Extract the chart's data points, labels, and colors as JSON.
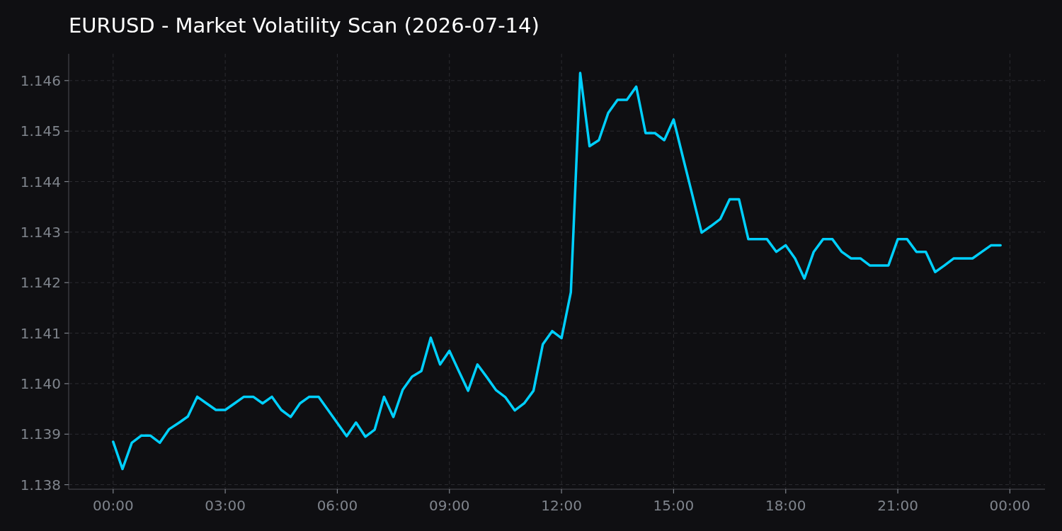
{
  "chart_data": {
    "type": "line",
    "title": "EURUSD - Market Volatility Scan (2026-07-14)",
    "x": [
      0,
      0.25,
      0.5,
      0.75,
      1,
      1.25,
      1.5,
      1.75,
      2,
      2.25,
      2.5,
      2.75,
      3,
      3.25,
      3.5,
      3.75,
      4,
      4.25,
      4.5,
      4.75,
      5,
      5.25,
      5.5,
      5.75,
      6,
      6.25,
      6.5,
      6.75,
      7,
      7.25,
      7.5,
      7.75,
      8,
      8.25,
      8.5,
      8.75,
      9,
      9.25,
      9.5,
      9.75,
      10,
      10.25,
      10.5,
      10.75,
      11,
      11.25,
      11.5,
      11.75,
      12,
      12.25,
      12.5,
      12.75,
      13,
      13.25,
      13.5,
      13.75,
      14,
      14.25,
      14.5,
      14.75,
      15,
      15.25,
      15.5,
      15.75,
      16,
      16.25,
      16.5,
      16.75,
      17,
      17.25,
      17.5,
      17.75,
      18,
      18.25,
      18.5,
      18.75,
      19,
      19.25,
      19.5,
      19.75,
      20,
      20.25,
      20.5,
      20.75,
      21,
      21.25,
      21.5,
      21.75,
      22,
      22.25,
      22.5,
      22.75,
      23,
      23.25,
      23.5,
      23.75
    ],
    "values": [
      1.13885,
      1.13831,
      1.13883,
      1.13897,
      1.13897,
      1.13883,
      1.1391,
      1.13922,
      1.13935,
      1.13974,
      1.13961,
      1.13948,
      1.13948,
      1.13961,
      1.13974,
      1.13974,
      1.13961,
      1.13974,
      1.13948,
      1.13934,
      1.13961,
      1.13974,
      1.13974,
      1.13948,
      1.13922,
      1.13896,
      1.13923,
      1.13895,
      1.13909,
      1.13974,
      1.13934,
      1.13988,
      1.14014,
      1.14025,
      1.14091,
      1.14038,
      1.14065,
      1.14025,
      1.13986,
      1.14038,
      1.14013,
      1.13987,
      1.13973,
      1.13947,
      1.13961,
      1.13986,
      1.14078,
      1.14104,
      1.1409,
      1.14181,
      1.14615,
      1.1447,
      1.14482,
      1.14536,
      1.14562,
      1.14562,
      1.14588,
      1.14496,
      1.14496,
      1.14482,
      1.14523,
      1.14448,
      1.14374,
      1.14299,
      1.14312,
      1.14326,
      1.14365,
      1.14365,
      1.14286,
      1.14286,
      1.14286,
      1.14261,
      1.14274,
      1.14248,
      1.14208,
      1.14261,
      1.14286,
      1.14286,
      1.14261,
      1.14248,
      1.14248,
      1.14234,
      1.14234,
      1.14234,
      1.14286,
      1.14286,
      1.14261,
      1.14261,
      1.14221,
      1.14234,
      1.14248,
      1.14248,
      1.14248,
      1.14261,
      1.14274,
      1.14274
    ],
    "color": "#00d0ff",
    "xlim": [
      -1.19,
      24.94
    ],
    "ylim": [
      1.13791,
      1.14653
    ],
    "xticks": [
      {
        "value": 0,
        "label": "00:00"
      },
      {
        "value": 3,
        "label": "03:00"
      },
      {
        "value": 6,
        "label": "06:00"
      },
      {
        "value": 9,
        "label": "09:00"
      },
      {
        "value": 12,
        "label": "12:00"
      },
      {
        "value": 15,
        "label": "15:00"
      },
      {
        "value": 18,
        "label": "18:00"
      },
      {
        "value": 21,
        "label": "21:00"
      },
      {
        "value": 24,
        "label": "00:00"
      }
    ],
    "yticks": [
      1.138,
      1.139,
      {
        "value": 1.14,
        "label": "1.140"
      },
      1.141,
      1.142,
      1.143,
      1.144,
      1.145,
      1.146
    ],
    "grid": true
  }
}
